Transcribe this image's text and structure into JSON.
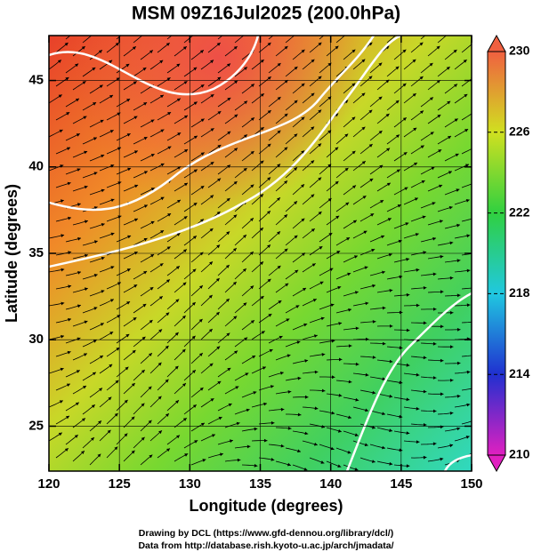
{
  "chart_data": {
    "type": "map",
    "title": "MSM 09Z16Jul2025 (200.0hPa)",
    "x_label": "Longitude (degrees)",
    "y_label": "Latitude  (degrees)",
    "xlim": [
      120,
      150
    ],
    "ylim": [
      22.4,
      47.6
    ],
    "xticks": [
      120,
      125,
      130,
      135,
      140,
      145,
      150
    ],
    "yticks": [
      25,
      30,
      35,
      40,
      45
    ],
    "grid": true,
    "colorbar": {
      "lim": [
        210,
        230
      ],
      "ticks": [
        210,
        214,
        218,
        222,
        226,
        230
      ],
      "colors": [
        "#e020c0",
        "#2030d0",
        "#20c8e0",
        "#30d040",
        "#d0e020",
        "#f06040"
      ]
    },
    "footer": [
      "Drawing by DCL (https://www.gfd-dennou.org/library/dcl/)",
      "Data from http://database.rish.kyoto-u.ac.jp/arch/jmadata/"
    ]
  }
}
